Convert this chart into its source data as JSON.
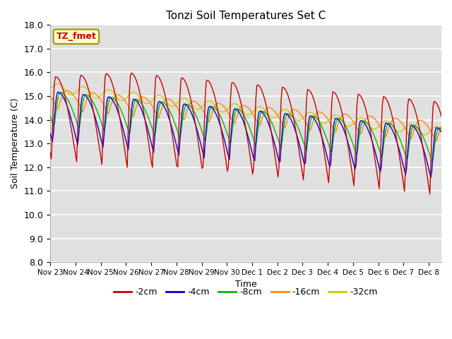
{
  "title": "Tonzi Soil Temperatures Set C",
  "xlabel": "Time",
  "ylabel": "Soil Temperature (C)",
  "ylim": [
    8.0,
    18.0
  ],
  "yticks": [
    8.0,
    9.0,
    10.0,
    11.0,
    12.0,
    13.0,
    14.0,
    15.0,
    16.0,
    17.0,
    18.0
  ],
  "annotation_label": "TZ_fmet",
  "bg_color": "#e0e0e0",
  "series_colors": {
    "-2cm": "#cc0000",
    "-4cm": "#0000cc",
    "-8cm": "#00bb00",
    "-16cm": "#ff8800",
    "-32cm": "#cccc00"
  },
  "legend_labels": [
    "-2cm",
    "-4cm",
    "-8cm",
    "-16cm",
    "-32cm"
  ],
  "x_tick_labels": [
    "Nov 23",
    "Nov 24",
    "Nov 25",
    "Nov 26",
    "Nov 27",
    "Nov 28",
    "Nov 29",
    "Nov 30",
    "Dec 1",
    "Dec 2",
    "Dec 3",
    "Dec 4",
    "Dec 5",
    "Dec 6",
    "Dec 7",
    "Dec 8"
  ],
  "num_days": 15.5
}
